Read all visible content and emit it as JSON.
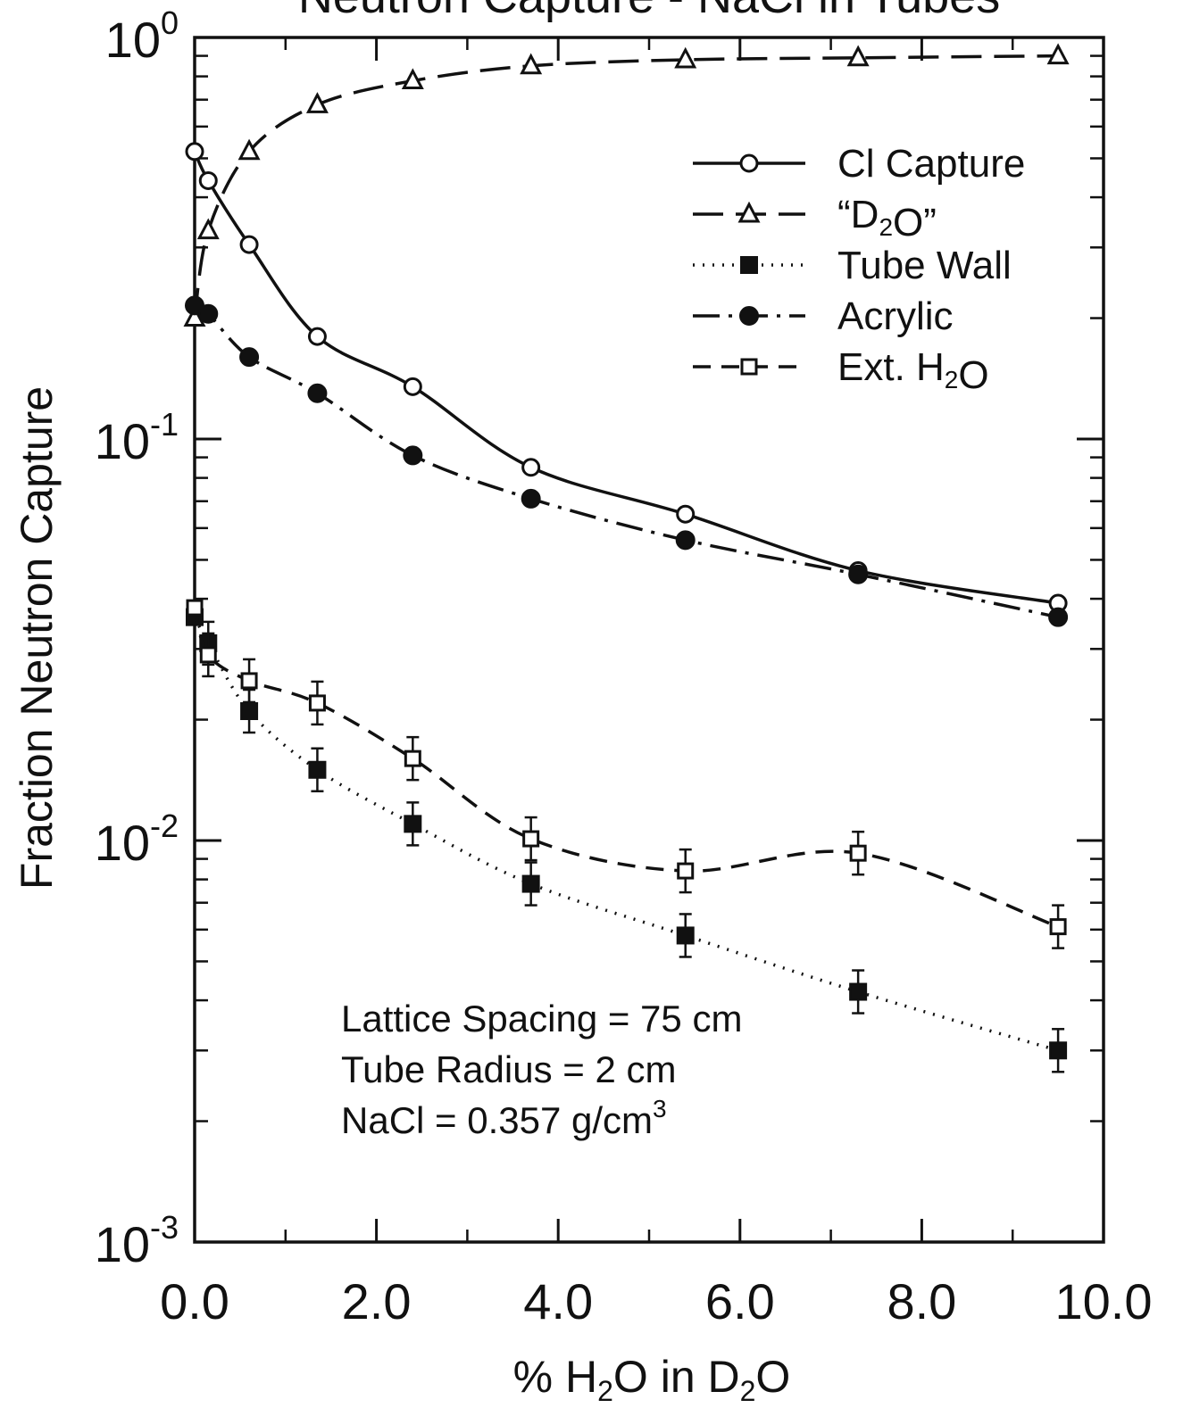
{
  "chart_data": {
    "type": "line",
    "title": "Neutron Capture - NaCl in Tubes",
    "xlabel": "% H₂O in D₂O",
    "ylabel": "Fraction Neutron Capture",
    "xlim": [
      0,
      10
    ],
    "ylim": [
      0.001,
      1
    ],
    "y_scale": "log",
    "x_ticks": [
      "0.0",
      "2.0",
      "4.0",
      "6.0",
      "8.0",
      "10.0"
    ],
    "x_tick_values": [
      0,
      2,
      4,
      6,
      8,
      10
    ],
    "y_ticks": [
      {
        "value": 1,
        "base": "10",
        "exp": "0"
      },
      {
        "value": 0.1,
        "base": "10",
        "exp": "-1"
      },
      {
        "value": 0.01,
        "base": "10",
        "exp": "-2"
      },
      {
        "value": 0.001,
        "base": "10",
        "exp": "-3"
      }
    ],
    "grid": false,
    "legend_position": "top-right",
    "series": [
      {
        "name": "Cl Capture",
        "line": "solid",
        "marker": "open-circle",
        "x": [
          0.0,
          0.15,
          0.6,
          1.35,
          2.4,
          3.7,
          5.4,
          7.3,
          9.5
        ],
        "y": [
          0.52,
          0.44,
          0.305,
          0.18,
          0.135,
          0.085,
          0.065,
          0.047,
          0.039
        ]
      },
      {
        "name": "“D₂O”",
        "line": "longdash",
        "marker": "open-triangle",
        "x": [
          0.0,
          0.15,
          0.6,
          1.35,
          2.4,
          3.7,
          5.4,
          7.3,
          9.5
        ],
        "y": [
          0.2,
          0.33,
          0.52,
          0.68,
          0.78,
          0.85,
          0.88,
          0.89,
          0.9
        ]
      },
      {
        "name": "Tube Wall",
        "line": "dotted",
        "marker": "filled-square",
        "error_bars": true,
        "x": [
          0.0,
          0.15,
          0.6,
          1.35,
          2.4,
          3.7,
          5.4,
          7.3,
          9.5
        ],
        "y": [
          0.036,
          0.031,
          0.021,
          0.015,
          0.011,
          0.0078,
          0.0058,
          0.0042,
          0.003
        ]
      },
      {
        "name": "Acrylic",
        "line": "dashdot",
        "marker": "filled-circle",
        "x": [
          0.0,
          0.15,
          0.6,
          1.35,
          2.4,
          3.7,
          5.4,
          7.3,
          9.5
        ],
        "y": [
          0.215,
          0.205,
          0.16,
          0.13,
          0.091,
          0.071,
          0.056,
          0.046,
          0.036
        ]
      },
      {
        "name": "Ext. H₂O",
        "line": "dashed",
        "marker": "open-square",
        "error_bars": true,
        "x": [
          0.0,
          0.15,
          0.6,
          1.35,
          2.4,
          3.7,
          5.4,
          7.3,
          9.5
        ],
        "y": [
          0.038,
          0.029,
          0.025,
          0.022,
          0.016,
          0.0101,
          0.0084,
          0.0093,
          0.0061
        ]
      }
    ],
    "annotations": [
      "Lattice Spacing = 75 cm",
      "Tube Radius = 2 cm",
      "NaCl = 0.357 g/cm³"
    ]
  },
  "colors": {
    "ink": "#111111",
    "background": "#ffffff"
  }
}
